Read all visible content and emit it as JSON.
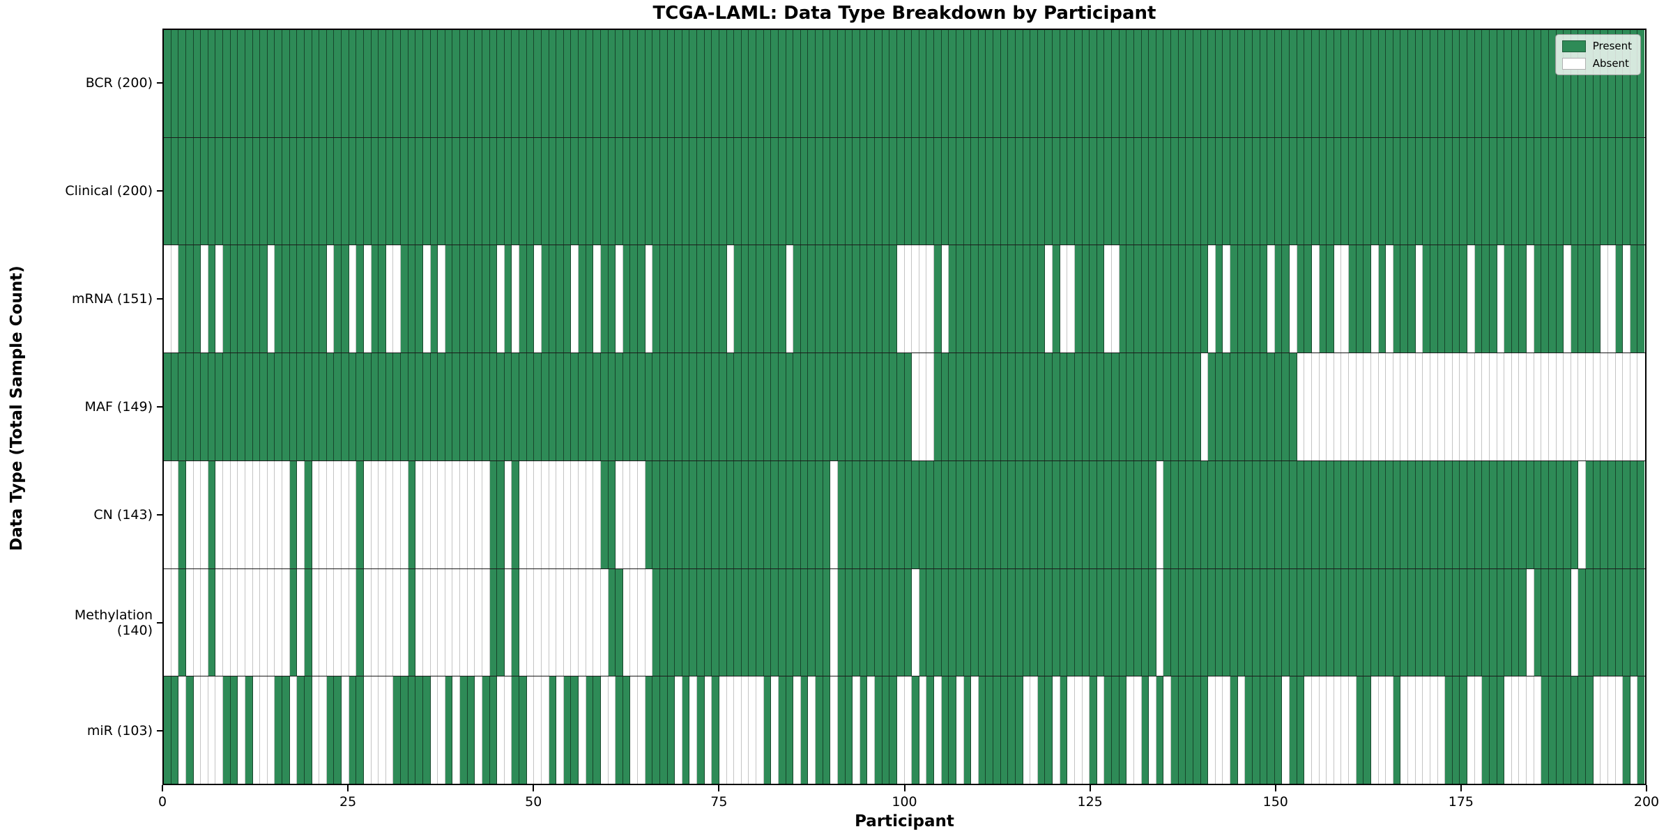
{
  "chart_data": {
    "type": "heatmap",
    "title": "TCGA-LAML: Data Type Breakdown by Participant",
    "xlabel": "Participant",
    "ylabel": "Data Type (Total Sample Count)",
    "x_ticks": [
      0,
      25,
      50,
      75,
      100,
      125,
      150,
      175,
      200
    ],
    "n_participants": 200,
    "xlim": [
      0,
      200
    ],
    "grid": false,
    "legend_position": "upper right",
    "colors": {
      "present": "#2e8b57",
      "absent": "#ffffff",
      "row_separator": "#1a1a1a",
      "frame": "#000000"
    },
    "legend": [
      {
        "label": "Present",
        "color": "#2e8b57"
      },
      {
        "label": "Absent",
        "color": "#ffffff"
      }
    ],
    "rows": [
      {
        "label": "BCR (200)",
        "name": "BCR",
        "present_count": 200,
        "absent": []
      },
      {
        "label": "Clinical (200)",
        "name": "Clinical",
        "present_count": 200,
        "absent": []
      },
      {
        "label": "mRNA (151)",
        "name": "mRNA",
        "present_count": 151,
        "absent": [
          0,
          1,
          5,
          7,
          14,
          22,
          25,
          27,
          30,
          31,
          35,
          37,
          45,
          47,
          50,
          55,
          58,
          61,
          65,
          76,
          84,
          99,
          100,
          101,
          102,
          103,
          105,
          119,
          121,
          122,
          127,
          128,
          141,
          143,
          149,
          152,
          155,
          158,
          159,
          163,
          165,
          169,
          176,
          180,
          184,
          189,
          194,
          195,
          197
        ]
      },
      {
        "label": "MAF (149)",
        "name": "MAF",
        "present_count": 149,
        "absent": [
          101,
          102,
          103,
          140,
          153,
          154,
          155,
          156,
          157,
          158,
          159,
          160,
          161,
          162,
          163,
          164,
          165,
          166,
          167,
          168,
          169,
          170,
          171,
          172,
          173,
          174,
          175,
          176,
          177,
          178,
          179,
          180,
          181,
          182,
          183,
          184,
          185,
          186,
          187,
          188,
          189,
          190,
          191,
          192,
          193,
          194,
          195,
          196,
          197,
          198,
          199
        ]
      },
      {
        "label": "CN (143)",
        "name": "CN",
        "present_count": 143,
        "absent": [
          0,
          1,
          3,
          4,
          5,
          7,
          8,
          9,
          10,
          11,
          12,
          13,
          14,
          15,
          16,
          18,
          20,
          21,
          22,
          23,
          24,
          25,
          27,
          28,
          29,
          30,
          31,
          32,
          34,
          35,
          36,
          37,
          38,
          39,
          40,
          41,
          42,
          43,
          46,
          48,
          49,
          50,
          51,
          52,
          53,
          54,
          55,
          56,
          57,
          58,
          61,
          62,
          63,
          64,
          90,
          134,
          191
        ]
      },
      {
        "label": "Methylation (140)",
        "name": "Methylation",
        "present_count": 140,
        "absent": [
          0,
          1,
          3,
          4,
          5,
          7,
          8,
          9,
          10,
          11,
          12,
          13,
          14,
          15,
          16,
          18,
          20,
          21,
          22,
          23,
          24,
          25,
          27,
          28,
          29,
          30,
          31,
          32,
          34,
          35,
          36,
          37,
          38,
          39,
          40,
          41,
          42,
          43,
          46,
          48,
          49,
          50,
          51,
          52,
          53,
          54,
          55,
          56,
          57,
          58,
          59,
          62,
          63,
          64,
          65,
          90,
          101,
          134,
          184,
          190
        ]
      },
      {
        "label": "miR (103)",
        "name": "miR",
        "present_count": 103,
        "absent": [
          2,
          4,
          5,
          6,
          7,
          10,
          12,
          13,
          14,
          17,
          20,
          21,
          24,
          27,
          28,
          29,
          30,
          36,
          37,
          39,
          42,
          45,
          46,
          49,
          50,
          51,
          53,
          56,
          59,
          60,
          63,
          64,
          69,
          71,
          73,
          75,
          76,
          77,
          78,
          79,
          80,
          82,
          85,
          87,
          90,
          93,
          95,
          99,
          100,
          102,
          104,
          107,
          109,
          116,
          117,
          120,
          122,
          123,
          124,
          126,
          130,
          131,
          133,
          135,
          141,
          142,
          143,
          145,
          151,
          154,
          155,
          156,
          157,
          158,
          159,
          160,
          163,
          164,
          165,
          167,
          168,
          169,
          170,
          171,
          172,
          176,
          177,
          181,
          182,
          183,
          184,
          185,
          193,
          194,
          195,
          196,
          198
        ]
      }
    ]
  }
}
